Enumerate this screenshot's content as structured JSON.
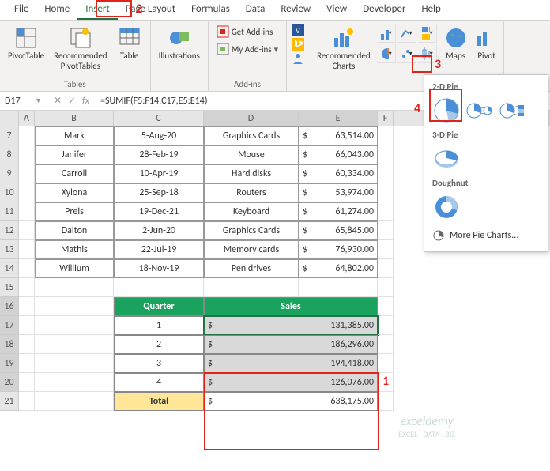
{
  "tabs": [
    "File",
    "Home",
    "Insert",
    "Page Layout",
    "Formulas",
    "Data",
    "Review",
    "View",
    "Developer",
    "Help"
  ],
  "activeTab": "Insert",
  "ribbon": {
    "tables": {
      "pivot": "PivotTable",
      "rec": "Recommended\nPivotTables",
      "table": "Table",
      "label": "Tables"
    },
    "illus": {
      "btn": "Illustrations"
    },
    "addins": {
      "get": "Get Add-ins",
      "my": "My Add-ins",
      "label": "Add-ins"
    },
    "charts": {
      "rec": "Recommended\nCharts",
      "maps": "Maps",
      "pivotc": "Pivot"
    }
  },
  "nameBox": "D17",
  "formula": "=SUMIF(F5:F14,C17,E5:E14)",
  "cols": {
    "A": 20,
    "B": 100,
    "C": 114,
    "D": 120,
    "E": 100,
    "F": 20
  },
  "data": [
    {
      "r": 7,
      "name": "Mark",
      "date": "5-Aug-20",
      "prod": "Graphics Cards",
      "amt": "63,514.00"
    },
    {
      "r": 8,
      "name": "Janifer",
      "date": "28-Feb-19",
      "prod": "Mouse",
      "amt": "66,043.00"
    },
    {
      "r": 9,
      "name": "Carroll",
      "date": "10-Apr-19",
      "prod": "Hard disks",
      "amt": "60,334.00"
    },
    {
      "r": 10,
      "name": "Xylona",
      "date": "25-Sep-18",
      "prod": "Routers",
      "amt": "53,974.00"
    },
    {
      "r": 11,
      "name": "Preis",
      "date": "19-Dec-21",
      "prod": "Keyboard",
      "amt": "61,274.00"
    },
    {
      "r": 12,
      "name": "Dalton",
      "date": "2-Jun-20",
      "prod": "Graphics Cards",
      "amt": "65,845.00"
    },
    {
      "r": 13,
      "name": "Mathis",
      "date": "22-Jul-19",
      "prod": "Memory cards",
      "amt": "76,930.00"
    },
    {
      "r": 14,
      "name": "Willium",
      "date": "18-Nov-19",
      "prod": "Pen drives",
      "amt": "64,802.00"
    }
  ],
  "qtable": {
    "head": {
      "q": "Quarter",
      "s": "Sales"
    },
    "rows": [
      {
        "q": "1",
        "s": "131,385.00"
      },
      {
        "q": "2",
        "s": "186,296.00"
      },
      {
        "q": "3",
        "s": "194,418.00"
      },
      {
        "q": "4",
        "s": "126,076.00"
      }
    ],
    "total": {
      "label": "Total",
      "val": "638,175.00"
    }
  },
  "pieDD": {
    "s1": "2-D Pie",
    "s2": "3-D Pie",
    "s3": "Doughnut",
    "more": "More Pie Charts..."
  },
  "colors": {
    "green": "#1aa35f",
    "red": "#e2231a",
    "excel": "#217346",
    "blue": "#4a8fd8",
    "gray": "#d9d9d9"
  },
  "watermark": {
    "t": "exceldemy",
    "s": "EXCEL · DATA · BIZ"
  }
}
